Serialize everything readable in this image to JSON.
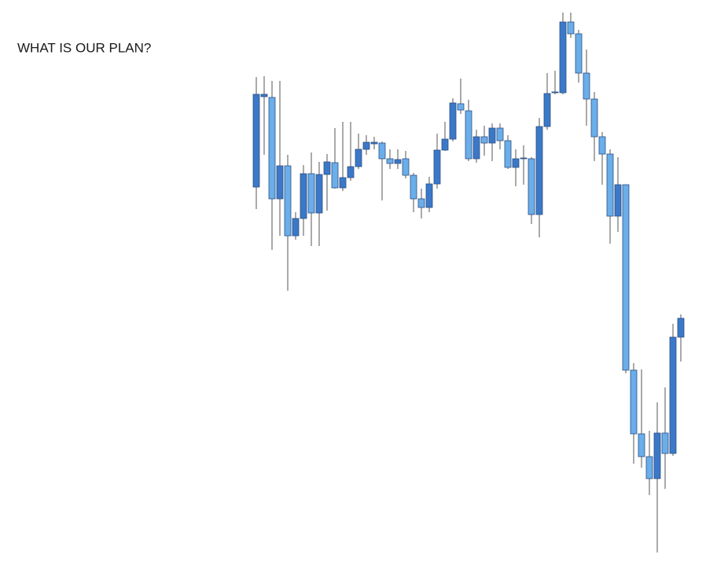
{
  "chart_data": {
    "type": "candlestick",
    "title": "WHAT IS OUR PLAN?",
    "up_color": "#3b78c8",
    "down_color": "#6aaeea",
    "open": [
      500,
      615,
      614,
      485,
      527,
      438,
      460,
      517,
      467,
      516,
      531,
      499,
      512,
      526,
      548,
      555,
      556,
      536,
      530,
      536,
      515,
      485,
      474,
      504,
      547,
      561,
      606,
      597,
      536,
      564,
      556,
      575,
      559,
      525,
      536,
      536,
      465,
      577,
      620,
      620,
      710,
      695,
      645,
      612,
      564,
      542,
      463,
      503,
      267,
      186,
      157,
      129,
      187,
      161,
      309
    ],
    "high": [
      640,
      641,
      635,
      635,
      541,
      468,
      528,
      544,
      532,
      542,
      575,
      583,
      583,
      568,
      566,
      564,
      558,
      548,
      548,
      546,
      518,
      498,
      513,
      568,
      583,
      613,
      638,
      611,
      573,
      578,
      581,
      581,
      566,
      548,
      553,
      538,
      588,
      645,
      648,
      722,
      722,
      700,
      675,
      621,
      570,
      548,
      538,
      503,
      276,
      268,
      190,
      226,
      245,
      326,
      338
    ],
    "low": [
      472,
      541,
      420,
      438,
      368,
      433,
      438,
      425,
      425,
      470,
      498,
      495,
      508,
      523,
      541,
      548,
      483,
      523,
      523,
      511,
      468,
      460,
      468,
      498,
      546,
      558,
      593,
      533,
      531,
      540,
      533,
      548,
      523,
      501,
      503,
      453,
      436,
      573,
      618,
      618,
      690,
      633,
      578,
      533,
      503,
      428,
      443,
      263,
      148,
      143,
      108,
      35,
      116,
      158,
      278
    ],
    "close": [
      618,
      618,
      485,
      527,
      438,
      460,
      517,
      467,
      516,
      532,
      499,
      512,
      526,
      548,
      557,
      557,
      536,
      530,
      535,
      515,
      485,
      474,
      504,
      547,
      561,
      607,
      598,
      536,
      564,
      556,
      575,
      559,
      525,
      536,
      537,
      465,
      577,
      619,
      621,
      710,
      695,
      645,
      612,
      564,
      542,
      463,
      503,
      267,
      186,
      157,
      129,
      187,
      161,
      309,
      333
    ]
  }
}
